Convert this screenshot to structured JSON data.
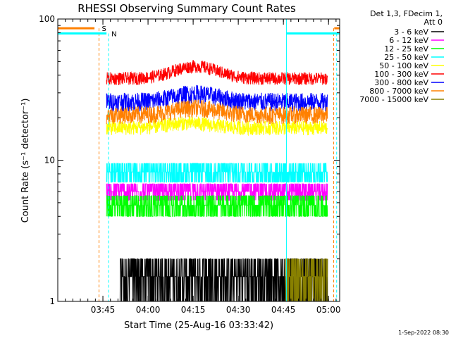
{
  "chart_data": {
    "type": "line",
    "title": "RHESSI Observing Summary Count Rates",
    "xlabel": "Start Time (25-Aug-16 03:33:42)",
    "ylabel": "Count Rate (s⁻¹ detector⁻¹)",
    "y_scale": "log",
    "ylim": [
      1,
      100
    ],
    "xlim_min": [
      -3.7,
      70.0
    ],
    "y_ticks": [
      {
        "label": "1",
        "v": 1
      },
      {
        "label": "10",
        "v": 10
      },
      {
        "label": "100",
        "v": 100
      }
    ],
    "x_ticks": [
      {
        "label": "03:45",
        "t": 11.3
      },
      {
        "label": "04:00",
        "t": 26.3
      },
      {
        "label": "04:15",
        "t": 41.3
      },
      {
        "label": "04:30",
        "t": 56.3
      },
      {
        "label": "04:45",
        "t": 71.3
      },
      {
        "label": "05:00",
        "t": 86.3
      }
    ],
    "legend_header": [
      "Det 1,3, FDecim 1,",
      "Att 0"
    ],
    "legend_position": "right",
    "series": [
      {
        "name": "3 - 6 keV",
        "color": "#000000",
        "lo": 1.0,
        "hi": 2.0,
        "peak_min": 0,
        "peak_amp": 0.0,
        "t_start": 17,
        "t_end": 86,
        "quant": true
      },
      {
        "name": "6 - 12 keV",
        "color": "#ff00ff",
        "lo": 5.2,
        "hi": 6.8,
        "peak_min": 0,
        "peak_amp": 0.0,
        "t_start": 12.5,
        "t_end": 86,
        "quant": true
      },
      {
        "name": "12 - 25 keV",
        "color": "#00ff00",
        "lo": 4.0,
        "hi": 5.6,
        "peak_min": 0,
        "peak_amp": 0.0,
        "t_start": 12.5,
        "t_end": 86,
        "quant": true
      },
      {
        "name": "25 - 50 keV",
        "color": "#00ffff",
        "lo": 7.0,
        "hi": 9.5,
        "peak_min": 0,
        "peak_amp": 0.0,
        "t_start": 12.5,
        "t_end": 86,
        "quant": true
      },
      {
        "name": "50 - 100 keV",
        "color": "#ffff00",
        "lo": 15.0,
        "hi": 19.0,
        "peak_min": 40,
        "peak_amp": 0.08,
        "t_start": 12.5,
        "t_end": 86,
        "quant": false
      },
      {
        "name": "100 - 300 keV",
        "color": "#ff0000",
        "lo": 34.0,
        "hi": 42.0,
        "peak_min": 42,
        "peak_amp": 0.22,
        "t_start": 12.5,
        "t_end": 86,
        "quant": false
      },
      {
        "name": "300 - 800 keV",
        "color": "#0000ff",
        "lo": 22.0,
        "hi": 30.0,
        "peak_min": 42,
        "peak_amp": 0.14,
        "t_start": 12.5,
        "t_end": 86,
        "quant": false
      },
      {
        "name": "800 - 7000 keV",
        "color": "#ff8000",
        "lo": 18.0,
        "hi": 24.0,
        "peak_min": 42,
        "peak_amp": 0.12,
        "t_start": 12.5,
        "t_end": 86,
        "quant": false
      },
      {
        "name": "7000 - 15000 keV",
        "color": "#888000",
        "lo": 1.0,
        "hi": 2.0,
        "peak_min": 0,
        "peak_amp": 0.0,
        "t_start": 72,
        "t_end": 86,
        "quant": true
      }
    ],
    "flags": [
      {
        "label": "S",
        "color": "#ff8000",
        "y_value": 86,
        "segments": [
          [
            -3.7,
            8.5
          ],
          [
            88.2,
            90.0
          ]
        ],
        "markers": [
          10.0,
          88.0
        ]
      },
      {
        "label": "N",
        "color": "#00ffff",
        "y_value": 79,
        "segments": [
          [
            -3.7,
            12.5
          ],
          [
            72.3,
            90.0
          ]
        ],
        "markers": [
          13.2,
          89.0
        ]
      }
    ],
    "vertical_lines": [
      {
        "color": "#00ffff",
        "t": -3.7,
        "from": 1,
        "to": 80
      },
      {
        "color": "#00ffff",
        "t": 72.3,
        "from": 1,
        "to": 100
      }
    ]
  },
  "footer": {
    "timestamp": "1-Sep-2022 08:30"
  }
}
